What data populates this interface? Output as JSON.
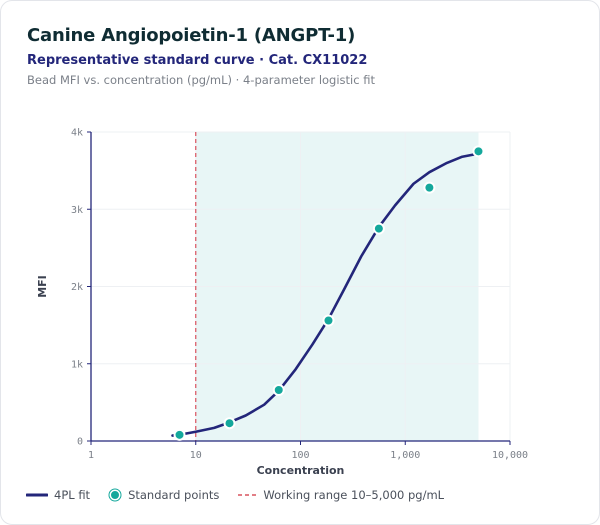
{
  "header": {
    "title": "Canine Angiopoietin-1 (ANGPT-1)",
    "subtitle": "Representative standard curve · Cat. CX11022",
    "caption": "Bead MFI vs. concentration (pg/mL) · 4-parameter logistic fit"
  },
  "colors": {
    "fit": "#23267a",
    "points": "#14a89c",
    "working_range": "#d9535f",
    "shade": "#e8f6f6",
    "grid": "#eef0f3",
    "axis": "#23267a"
  },
  "legend": {
    "fit": "4PL fit",
    "points": "Standard points",
    "range": "Working range 10–5,000 pg/mL"
  },
  "chart_data": {
    "type": "scatter",
    "xlabel": "Concentration",
    "ylabel": "MFI",
    "xscale": "log",
    "xlim": [
      1,
      10000
    ],
    "ylim": [
      0,
      4000
    ],
    "x_ticks": [
      1,
      10,
      100,
      1000,
      10000
    ],
    "x_tick_labels": [
      "1",
      "10",
      "100",
      "1,000",
      "10,000"
    ],
    "y_ticks": [
      0,
      1000,
      2000,
      3000,
      4000
    ],
    "y_tick_labels": [
      "0",
      "1k",
      "2k",
      "3k",
      "4k"
    ],
    "grid": true,
    "legend_position": "bottom",
    "working_range": [
      10,
      5000
    ],
    "series": [
      {
        "name": "Standard points",
        "kind": "points",
        "x": [
          7,
          21,
          62,
          185,
          560,
          1700,
          5000
        ],
        "y": [
          80,
          230,
          660,
          1560,
          2750,
          3280,
          3750
        ]
      },
      {
        "name": "4PL fit",
        "kind": "line",
        "x": [
          6,
          8,
          10,
          15,
          20,
          30,
          45,
          62,
          90,
          130,
          185,
          260,
          380,
          560,
          800,
          1200,
          1700,
          2500,
          3500,
          5000
        ],
        "y": [
          70,
          95,
          120,
          170,
          230,
          330,
          470,
          650,
          930,
          1250,
          1580,
          1960,
          2390,
          2770,
          3050,
          3330,
          3480,
          3600,
          3680,
          3720
        ]
      }
    ]
  }
}
